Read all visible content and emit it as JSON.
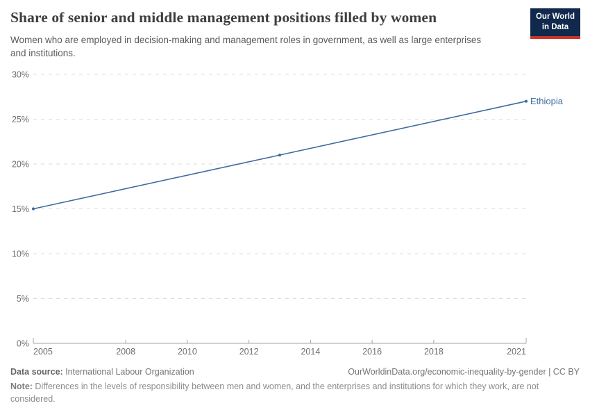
{
  "header": {
    "logo": {
      "line1": "Our World",
      "line2": "in Data",
      "bg_color": "#10294c",
      "accent_color": "#cc3426"
    }
  },
  "chart_data": {
    "type": "line",
    "title": "Share of senior and middle management positions filled by women",
    "subtitle": "Women who are employed in decision-making and management roles in government, as well as large enterprises and institutions.",
    "series": [
      {
        "name": "Ethiopia",
        "color": "#3d6c9e",
        "x": [
          2005,
          2013,
          2021
        ],
        "values": [
          15,
          21,
          27
        ]
      }
    ],
    "x_ticks": [
      2005,
      2008,
      2010,
      2012,
      2014,
      2016,
      2018,
      2021
    ],
    "y_ticks": [
      0,
      5,
      10,
      15,
      20,
      25,
      30
    ],
    "y_tick_suffix": "%",
    "xlim": [
      2005,
      2021
    ],
    "ylim": [
      0,
      30
    ],
    "grid": "horizontal-dashed",
    "grid_color": "#dcdcdc",
    "axis_color": "#a3a3a3",
    "tick_label_color": "#6e6e6e",
    "legend": "end-of-line-label"
  },
  "footer": {
    "source_label": "Data source:",
    "source_value": " International Labour Organization",
    "link": "OurWorldinData.org/economic-inequality-by-gender | CC BY",
    "note_label": "Note:",
    "note_value": " Differences in the levels of responsibility between men and women, and the enterprises and institutions for which they work, are not considered."
  }
}
